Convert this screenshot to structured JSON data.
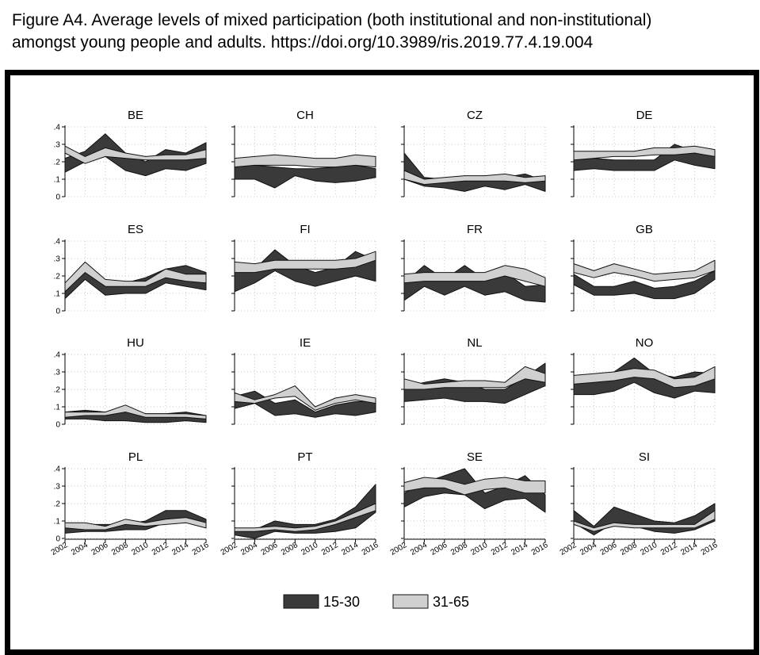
{
  "caption": {
    "line1": "Figure A4. Average levels of mixed participation (both institutional and non-institutional)",
    "line2": "amongst young people and adults. https://doi.org/10.3989/ris.2019.77.4.19.004"
  },
  "chart_data": {
    "type": "area",
    "x": [
      2002,
      2004,
      2006,
      2008,
      2010,
      2012,
      2014,
      2016
    ],
    "x_tick_labels": [
      "2002",
      "2004",
      "2006",
      "2008",
      "2010",
      "2012",
      "2014",
      "2016"
    ],
    "y_ticks": [
      0,
      0.1,
      0.2,
      0.3,
      0.4
    ],
    "y_tick_labels": [
      "0",
      ".1",
      ".2",
      ".3",
      ".4"
    ],
    "ylim": [
      0,
      0.4
    ],
    "grid": true,
    "legend_position": "bottom",
    "colors": {
      "15-30": "#3a3a3a",
      "31-65": "#d0d0d0"
    },
    "legend": [
      {
        "label": "15-30",
        "color": "#3a3a3a"
      },
      {
        "label": "31-65",
        "color": "#d0d0d0"
      }
    ],
    "panels": [
      {
        "title": "BE",
        "youth": {
          "lower": [
            0.14,
            0.2,
            0.23,
            0.15,
            0.12,
            0.16,
            0.15,
            0.19
          ],
          "upper": [
            0.22,
            0.26,
            0.36,
            0.25,
            0.2,
            0.27,
            0.25,
            0.31
          ]
        },
        "adult": {
          "lower": [
            0.25,
            0.19,
            0.23,
            0.22,
            0.21,
            0.21,
            0.21,
            0.22
          ],
          "upper": [
            0.29,
            0.23,
            0.28,
            0.25,
            0.23,
            0.24,
            0.24,
            0.27
          ]
        }
      },
      {
        "title": "CH",
        "youth": {
          "lower": [
            0.1,
            0.1,
            0.05,
            0.12,
            0.09,
            0.08,
            0.09,
            0.11
          ],
          "upper": [
            0.17,
            0.18,
            0.17,
            0.16,
            0.16,
            0.17,
            0.18,
            0.16
          ]
        },
        "adult": {
          "lower": [
            0.17,
            0.18,
            0.18,
            0.18,
            0.17,
            0.17,
            0.18,
            0.17
          ],
          "upper": [
            0.22,
            0.23,
            0.24,
            0.23,
            0.22,
            0.22,
            0.24,
            0.23
          ]
        }
      },
      {
        "title": "CZ",
        "youth": {
          "lower": [
            0.1,
            0.06,
            0.05,
            0.03,
            0.06,
            0.04,
            0.07,
            0.03
          ],
          "upper": [
            0.25,
            0.11,
            0.1,
            0.09,
            0.09,
            0.11,
            0.13,
            0.09
          ]
        },
        "adult": {
          "lower": [
            0.1,
            0.07,
            0.08,
            0.09,
            0.09,
            0.09,
            0.08,
            0.09
          ],
          "upper": [
            0.15,
            0.1,
            0.11,
            0.12,
            0.12,
            0.13,
            0.11,
            0.12
          ]
        }
      },
      {
        "title": "DE",
        "youth": {
          "lower": [
            0.15,
            0.16,
            0.15,
            0.15,
            0.15,
            0.21,
            0.18,
            0.16
          ],
          "upper": [
            0.21,
            0.22,
            0.21,
            0.21,
            0.21,
            0.3,
            0.26,
            0.23
          ]
        },
        "adult": {
          "lower": [
            0.21,
            0.22,
            0.23,
            0.23,
            0.24,
            0.24,
            0.25,
            0.23
          ],
          "upper": [
            0.26,
            0.26,
            0.26,
            0.26,
            0.28,
            0.28,
            0.29,
            0.27
          ]
        }
      },
      {
        "title": "ES",
        "youth": {
          "lower": [
            0.07,
            0.18,
            0.09,
            0.1,
            0.1,
            0.16,
            0.14,
            0.12
          ],
          "upper": [
            0.14,
            0.25,
            0.16,
            0.16,
            0.19,
            0.24,
            0.26,
            0.22
          ]
        },
        "adult": {
          "lower": [
            0.11,
            0.22,
            0.14,
            0.14,
            0.14,
            0.19,
            0.17,
            0.16
          ],
          "upper": [
            0.16,
            0.28,
            0.18,
            0.17,
            0.17,
            0.24,
            0.21,
            0.21
          ]
        }
      },
      {
        "title": "FI",
        "youth": {
          "lower": [
            0.11,
            0.16,
            0.23,
            0.17,
            0.14,
            0.17,
            0.2,
            0.17
          ],
          "upper": [
            0.22,
            0.24,
            0.35,
            0.26,
            0.22,
            0.25,
            0.34,
            0.29
          ]
        },
        "adult": {
          "lower": [
            0.22,
            0.22,
            0.24,
            0.24,
            0.24,
            0.24,
            0.25,
            0.29
          ],
          "upper": [
            0.28,
            0.27,
            0.29,
            0.29,
            0.29,
            0.29,
            0.3,
            0.34
          ]
        }
      },
      {
        "title": "FR",
        "youth": {
          "lower": [
            0.06,
            0.14,
            0.09,
            0.14,
            0.09,
            0.11,
            0.06,
            0.05
          ],
          "upper": [
            0.16,
            0.26,
            0.18,
            0.26,
            0.18,
            0.22,
            0.14,
            0.15
          ]
        },
        "adult": {
          "lower": [
            0.16,
            0.17,
            0.17,
            0.17,
            0.17,
            0.2,
            0.17,
            0.14
          ],
          "upper": [
            0.21,
            0.22,
            0.22,
            0.22,
            0.22,
            0.26,
            0.24,
            0.19
          ]
        }
      },
      {
        "title": "GB",
        "youth": {
          "lower": [
            0.15,
            0.09,
            0.09,
            0.1,
            0.07,
            0.07,
            0.1,
            0.18
          ],
          "upper": [
            0.21,
            0.14,
            0.14,
            0.17,
            0.13,
            0.14,
            0.17,
            0.23
          ]
        },
        "adult": {
          "lower": [
            0.22,
            0.19,
            0.22,
            0.2,
            0.17,
            0.18,
            0.19,
            0.23
          ],
          "upper": [
            0.27,
            0.23,
            0.27,
            0.24,
            0.21,
            0.22,
            0.23,
            0.29
          ]
        }
      },
      {
        "title": "HU",
        "youth": {
          "lower": [
            0.03,
            0.03,
            0.02,
            0.02,
            0.01,
            0.01,
            0.02,
            0.01
          ],
          "upper": [
            0.07,
            0.08,
            0.07,
            0.07,
            0.06,
            0.06,
            0.07,
            0.05
          ]
        },
        "adult": {
          "lower": [
            0.04,
            0.05,
            0.05,
            0.07,
            0.04,
            0.04,
            0.04,
            0.03
          ],
          "upper": [
            0.07,
            0.07,
            0.07,
            0.11,
            0.06,
            0.06,
            0.06,
            0.05
          ]
        }
      },
      {
        "title": "IE",
        "youth": {
          "lower": [
            0.09,
            0.12,
            0.05,
            0.06,
            0.04,
            0.06,
            0.05,
            0.07
          ],
          "upper": [
            0.16,
            0.19,
            0.12,
            0.14,
            0.07,
            0.11,
            0.13,
            0.13
          ]
        },
        "adult": {
          "lower": [
            0.13,
            0.12,
            0.15,
            0.16,
            0.08,
            0.12,
            0.14,
            0.12
          ],
          "upper": [
            0.18,
            0.14,
            0.17,
            0.22,
            0.1,
            0.15,
            0.17,
            0.15
          ]
        }
      },
      {
        "title": "NL",
        "youth": {
          "lower": [
            0.13,
            0.14,
            0.15,
            0.13,
            0.13,
            0.12,
            0.17,
            0.22
          ],
          "upper": [
            0.21,
            0.24,
            0.26,
            0.24,
            0.2,
            0.2,
            0.27,
            0.35
          ]
        },
        "adult": {
          "lower": [
            0.2,
            0.2,
            0.21,
            0.21,
            0.21,
            0.21,
            0.26,
            0.24
          ],
          "upper": [
            0.26,
            0.23,
            0.24,
            0.25,
            0.25,
            0.24,
            0.33,
            0.29
          ]
        }
      },
      {
        "title": "NO",
        "youth": {
          "lower": [
            0.17,
            0.17,
            0.19,
            0.24,
            0.18,
            0.15,
            0.19,
            0.18
          ],
          "upper": [
            0.23,
            0.28,
            0.3,
            0.38,
            0.29,
            0.27,
            0.3,
            0.29
          ]
        },
        "adult": {
          "lower": [
            0.23,
            0.24,
            0.25,
            0.27,
            0.26,
            0.21,
            0.22,
            0.26
          ],
          "upper": [
            0.28,
            0.29,
            0.3,
            0.32,
            0.31,
            0.26,
            0.27,
            0.33
          ]
        }
      },
      {
        "title": "PL",
        "youth": {
          "lower": [
            0.03,
            0.04,
            0.04,
            0.05,
            0.05,
            0.09,
            0.09,
            0.06
          ],
          "upper": [
            0.07,
            0.08,
            0.08,
            0.08,
            0.1,
            0.16,
            0.16,
            0.11
          ]
        },
        "adult": {
          "lower": [
            0.06,
            0.05,
            0.05,
            0.08,
            0.07,
            0.08,
            0.09,
            0.06
          ],
          "upper": [
            0.09,
            0.09,
            0.07,
            0.11,
            0.09,
            0.11,
            0.12,
            0.09
          ]
        }
      },
      {
        "title": "PT",
        "youth": {
          "lower": [
            0.02,
            0.0,
            0.04,
            0.03,
            0.03,
            0.04,
            0.06,
            0.15
          ],
          "upper": [
            0.06,
            0.05,
            0.1,
            0.08,
            0.08,
            0.11,
            0.18,
            0.31
          ]
        },
        "adult": {
          "lower": [
            0.04,
            0.04,
            0.05,
            0.04,
            0.05,
            0.08,
            0.12,
            0.16
          ],
          "upper": [
            0.06,
            0.06,
            0.07,
            0.06,
            0.07,
            0.1,
            0.15,
            0.2
          ]
        }
      },
      {
        "title": "SE",
        "youth": {
          "lower": [
            0.18,
            0.24,
            0.26,
            0.25,
            0.17,
            0.22,
            0.23,
            0.15
          ],
          "upper": [
            0.26,
            0.32,
            0.36,
            0.4,
            0.26,
            0.3,
            0.36,
            0.25
          ]
        },
        "adult": {
          "lower": [
            0.27,
            0.29,
            0.29,
            0.25,
            0.28,
            0.29,
            0.26,
            0.26
          ],
          "upper": [
            0.32,
            0.35,
            0.34,
            0.31,
            0.34,
            0.35,
            0.33,
            0.33
          ]
        }
      },
      {
        "title": "SI",
        "youth": {
          "lower": [
            0.09,
            0.02,
            0.09,
            0.07,
            0.04,
            0.03,
            0.05,
            0.1
          ],
          "upper": [
            0.16,
            0.07,
            0.18,
            0.14,
            0.1,
            0.09,
            0.13,
            0.2
          ]
        },
        "adult": {
          "lower": [
            0.08,
            0.04,
            0.07,
            0.06,
            0.06,
            0.06,
            0.06,
            0.11
          ],
          "upper": [
            0.1,
            0.06,
            0.09,
            0.08,
            0.08,
            0.08,
            0.08,
            0.16
          ]
        }
      }
    ]
  }
}
